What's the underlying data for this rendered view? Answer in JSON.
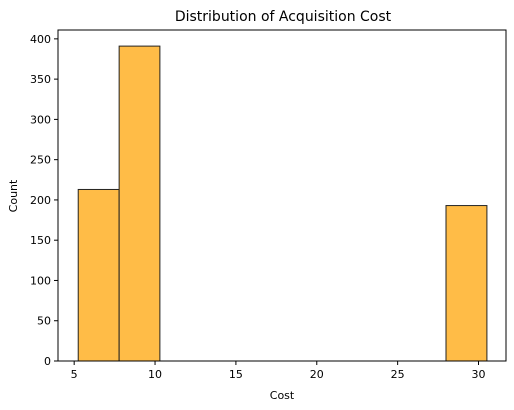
{
  "chart_data": {
    "type": "bar",
    "title": "Distribution of Acquisition Cost",
    "xlabel": "Cost",
    "ylabel": "Count",
    "xlim": [
      4.0,
      31.7
    ],
    "ylim": [
      0,
      411
    ],
    "xticks": [
      5,
      10,
      15,
      20,
      25,
      30
    ],
    "yticks": [
      0,
      50,
      100,
      150,
      200,
      250,
      300,
      350,
      400
    ],
    "bins": [
      {
        "x0": 5.25,
        "x1": 7.78,
        "count": 213
      },
      {
        "x0": 7.78,
        "x1": 10.3,
        "count": 391
      },
      {
        "x0": 10.3,
        "x1": 12.83,
        "count": 0
      },
      {
        "x0": 12.83,
        "x1": 15.36,
        "count": 0
      },
      {
        "x0": 15.36,
        "x1": 17.89,
        "count": 0
      },
      {
        "x0": 17.89,
        "x1": 20.41,
        "count": 0
      },
      {
        "x0": 20.41,
        "x1": 22.94,
        "count": 0
      },
      {
        "x0": 22.94,
        "x1": 25.47,
        "count": 0
      },
      {
        "x0": 25.47,
        "x1": 27.99,
        "count": 0
      },
      {
        "x0": 27.99,
        "x1": 30.52,
        "count": 193
      }
    ],
    "bar_color": "#FFBC47",
    "edge_color": "#222222",
    "grid": false,
    "legend": "none"
  }
}
